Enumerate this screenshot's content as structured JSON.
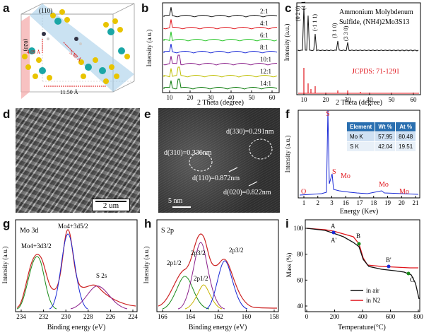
{
  "panels": {
    "a": {
      "label": "a",
      "plane_110": "(110)",
      "plane_020": "(020)",
      "d1": "4.09 Å",
      "d2": "5.48 Å",
      "d3": "11.50 Å"
    },
    "b": {
      "label": "b",
      "xlabel": "2 Theta (degree)",
      "ylabel": "Intensity (a.u.)",
      "ticks": [
        "10",
        "20",
        "30",
        "40",
        "50",
        "60"
      ],
      "series": [
        {
          "name": "14:1",
          "color": "#0a7a0a"
        },
        {
          "name": "12:1",
          "color": "#bfbf00"
        },
        {
          "name": "10:1",
          "color": "#8a1f8a"
        },
        {
          "name": "8:1",
          "color": "#1a2ad6"
        },
        {
          "name": "6:1",
          "color": "#23c423"
        },
        {
          "name": "4:1",
          "color": "#e0141b"
        },
        {
          "name": "2:1",
          "color": "#111111"
        }
      ]
    },
    "c": {
      "label": "c",
      "title1": "Ammonium Molybdenum",
      "title2": "Sulfide, (NH4)2Mo3S13",
      "xlabel": "2 Theta (degree)",
      "ylabel": "Intensity (a.u.)",
      "jcpds": "JCPDS: 71-1291",
      "ticks": [
        "10",
        "20",
        "30",
        "40",
        "50",
        "60"
      ],
      "peaks": [
        "(1 1 0)",
        "(0 2 0)",
        "(-1 1 1)",
        "(3 1 0)",
        "(3 3 0)"
      ]
    },
    "d": {
      "label": "d",
      "scale": "2 um"
    },
    "e": {
      "label": "e",
      "scale": "5 nm",
      "ann": [
        "d(310)=0.336nm",
        "d(330)=0.291nm",
        "d(110)=0.872nm",
        "d(020)=0.822nm"
      ]
    },
    "f": {
      "label": "f",
      "xlabel": "Energy (Kev)",
      "ylabel": "Intensity (a.u.)",
      "ticks": [
        "1",
        "2",
        "3",
        "16",
        "17",
        "18",
        "19",
        "20",
        "21"
      ],
      "peak_labels": [
        "S",
        "S",
        "Mo",
        "O",
        "Mo",
        "Mo"
      ],
      "table": {
        "headers": [
          "Element",
          "Wt %",
          "At %"
        ],
        "rows": [
          [
            "Mo K",
            "57.95",
            "80.48"
          ],
          [
            "S K",
            "42.04",
            "19.51"
          ]
        ]
      }
    },
    "g": {
      "label": "g",
      "title": "Mo 3d",
      "xlabel": "Binding energy (eV)",
      "ylabel": "Intensity (a.u.)",
      "ticks": [
        "234",
        "232",
        "230",
        "228",
        "226",
        "224"
      ],
      "peak_a": "Mo4+3d5/2",
      "peak_b": "Mo4+3d3/2",
      "peak_c": "S 2s"
    },
    "h": {
      "label": "h",
      "title": "S 2p",
      "xlabel": "Binding energy (eV)",
      "ylabel": "Intensity (a.u.)",
      "ticks": [
        "166",
        "164",
        "162",
        "160",
        "158"
      ],
      "peaks": [
        "2p1/2",
        "2p3/2",
        "2p1/2",
        "2p3/2"
      ]
    },
    "i": {
      "label": "i",
      "xlabel": "Temperature(°C)",
      "ylabel": "Mass (%)",
      "xticks": [
        "0",
        "200",
        "400",
        "600",
        "800"
      ],
      "yticks": [
        "40",
        "60",
        "80",
        "100"
      ],
      "points": [
        "A",
        "A'",
        "B",
        "B'",
        "C"
      ],
      "legend": [
        "in air",
        "in N2"
      ]
    }
  },
  "colors": {
    "red": "#e0141b",
    "blue": "#1a2ad6",
    "green": "#0a7a0a",
    "black": "#111111"
  }
}
